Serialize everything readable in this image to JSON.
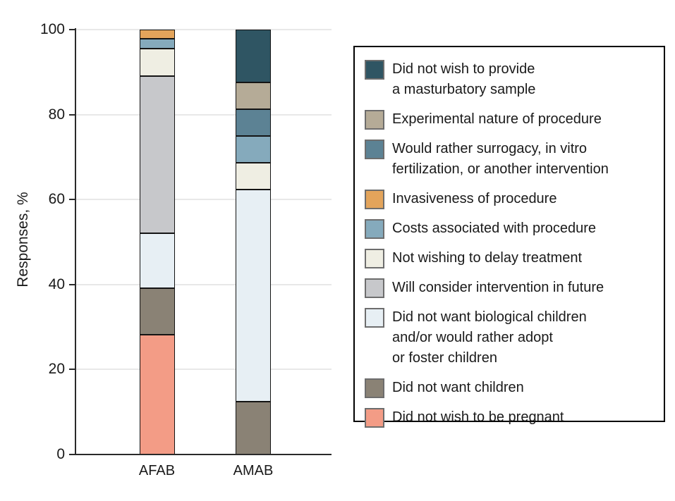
{
  "chart_data": {
    "type": "bar",
    "stacked": true,
    "title": "",
    "ylabel": "Responses, %",
    "xlabel": "",
    "ylim": [
      0,
      100
    ],
    "yticks": [
      0,
      20,
      40,
      60,
      80,
      100
    ],
    "grid": true,
    "legend_position": "right",
    "categories": [
      "AFAB",
      "AMAB"
    ],
    "series": [
      {
        "name": "Did not wish to be pregnant",
        "color": "#F39C86",
        "values": [
          28.3,
          0
        ]
      },
      {
        "name": "Did not want children",
        "color": "#8A8275",
        "values": [
          10.9,
          12.5
        ]
      },
      {
        "name": "Did not want biological children and/or would rather adopt or foster children",
        "color": "#E7EFF4",
        "values": [
          13.0,
          50.0
        ]
      },
      {
        "name": "Will consider intervention in future",
        "color": "#C7C8CB",
        "values": [
          37.0,
          0
        ]
      },
      {
        "name": "Not wishing to delay treatment",
        "color": "#EFEEE3",
        "values": [
          6.5,
          6.3
        ]
      },
      {
        "name": "Costs associated with procedure",
        "color": "#85AABC",
        "values": [
          2.2,
          6.3
        ]
      },
      {
        "name": "Invasiveness of procedure",
        "color": "#E3A45B",
        "values": [
          2.2,
          0
        ]
      },
      {
        "name": "Would rather surrogacy, in vitro fertilization, or another intervention",
        "color": "#5C8294",
        "values": [
          0,
          6.3
        ]
      },
      {
        "name": "Experimental nature of procedure",
        "color": "#B5AB97",
        "values": [
          0,
          6.3
        ]
      },
      {
        "name": "Did not wish to provide a masturbatory sample",
        "color": "#2F5563",
        "values": [
          0,
          12.5
        ]
      }
    ]
  },
  "legend": {
    "items": [
      {
        "label": "Did not wish to provide\na masturbatory sample",
        "color": "#2F5563"
      },
      {
        "label": "Experimental nature of procedure",
        "color": "#B5AB97"
      },
      {
        "label": "Would rather surrogacy, in vitro\nfertilization, or another intervention",
        "color": "#5C8294"
      },
      {
        "label": "Invasiveness of procedure",
        "color": "#E3A45B"
      },
      {
        "label": "Costs associated with procedure",
        "color": "#85AABC"
      },
      {
        "label": "Not wishing to delay treatment",
        "color": "#EFEEE3"
      },
      {
        "label": "Will consider intervention in future",
        "color": "#C7C8CB"
      },
      {
        "label": "Did not want biological children\nand/or would rather adopt\nor foster children",
        "color": "#E7EFF4"
      },
      {
        "label": "Did not want children",
        "color": "#8A8275"
      },
      {
        "label": "Did not wish to be pregnant",
        "color": "#F39C86"
      }
    ]
  },
  "axes": {
    "ytick_labels": [
      "0",
      "20",
      "40",
      "60",
      "80",
      "100"
    ],
    "xtick_labels": [
      "AFAB",
      "AMAB"
    ]
  }
}
